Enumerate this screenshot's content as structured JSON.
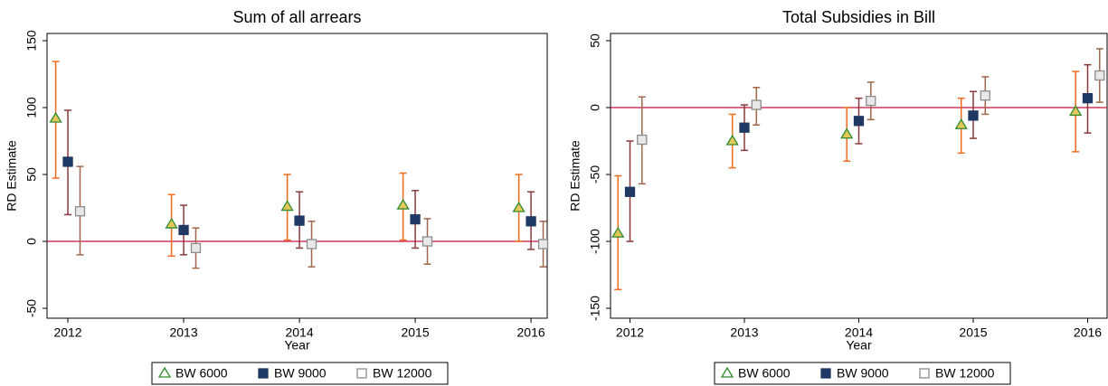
{
  "chart_data": [
    {
      "type": "errorbar",
      "title": "Sum of all arrears",
      "xlabel": "Year",
      "ylabel": "RD Estimate",
      "xlim": [
        2011.82,
        2016.14
      ],
      "xticks": [
        2012,
        2013,
        2014,
        2015,
        2016
      ],
      "ylim": [
        -57.4,
        155.4
      ],
      "yticks": [
        -50,
        0,
        50,
        100,
        150
      ],
      "reference_line": 0,
      "reference_color": "#c8103e",
      "x": [
        2012,
        2013,
        2014,
        2015,
        2016
      ],
      "series": [
        {
          "name": "BW 6000",
          "marker": "triangle",
          "color": "#2e8b2e",
          "fill": "#e4c95a",
          "bar_color": "#f26b1d",
          "values": [
            91.9,
            12.8,
            26,
            27,
            25
          ],
          "lower": [
            47.3,
            -11,
            1,
            1,
            0
          ],
          "upper": [
            134.5,
            35,
            50,
            51,
            50
          ]
        },
        {
          "name": "BW 9000",
          "marker": "square",
          "color": "#1f3864",
          "fill": "#1f3864",
          "bar_color": "#8b3a3a",
          "values": [
            59.5,
            8.5,
            15.5,
            16.5,
            15
          ],
          "lower": [
            20,
            -10,
            -5,
            -5,
            -6
          ],
          "upper": [
            98,
            27,
            37,
            38,
            37
          ]
        },
        {
          "name": "BW 12000",
          "marker": "hollow-square",
          "color": "#8c8c8c",
          "fill": "#e8e8e8",
          "bar_color": "#a0664a",
          "values": [
            22.5,
            -5,
            -2,
            0,
            -2
          ],
          "lower": [
            -10,
            -20,
            -19,
            -17,
            -19
          ],
          "upper": [
            56,
            10,
            15,
            17,
            15
          ]
        }
      ]
    },
    {
      "type": "errorbar",
      "title": "Total Subsidies in Bill",
      "xlabel": "Year",
      "ylabel": "RD Estimate",
      "xlim": [
        2011.83,
        2016.17
      ],
      "xticks": [
        2012,
        2013,
        2014,
        2015,
        2016
      ],
      "ylim": [
        -157.4,
        55.4
      ],
      "yticks": [
        -150,
        -100,
        -50,
        0,
        50
      ],
      "reference_line": 0,
      "reference_color": "#c8103e",
      "x": [
        2012,
        2013,
        2014,
        2015,
        2016
      ],
      "series": [
        {
          "name": "BW 6000",
          "marker": "triangle",
          "color": "#2e8b2e",
          "fill": "#e4c95a",
          "bar_color": "#f26b1d",
          "values": [
            -94,
            -25,
            -20,
            -13,
            -3
          ],
          "lower": [
            -136,
            -45,
            -40,
            -34,
            -33
          ],
          "upper": [
            -51,
            -5,
            0,
            7,
            27
          ]
        },
        {
          "name": "BW 9000",
          "marker": "square",
          "color": "#1f3864",
          "fill": "#1f3864",
          "bar_color": "#8b3a3a",
          "values": [
            -63,
            -15,
            -10,
            -6,
            7
          ],
          "lower": [
            -100,
            -32,
            -27,
            -23,
            -19
          ],
          "upper": [
            -25,
            2,
            7,
            12,
            32
          ]
        },
        {
          "name": "BW 12000",
          "marker": "hollow-square",
          "color": "#8c8c8c",
          "fill": "#e8e8e8",
          "bar_color": "#a0664a",
          "values": [
            -24,
            2,
            5,
            9,
            24
          ],
          "lower": [
            -57,
            -13,
            -9,
            -5,
            4
          ],
          "upper": [
            8,
            15,
            19,
            23,
            44
          ]
        }
      ]
    }
  ]
}
